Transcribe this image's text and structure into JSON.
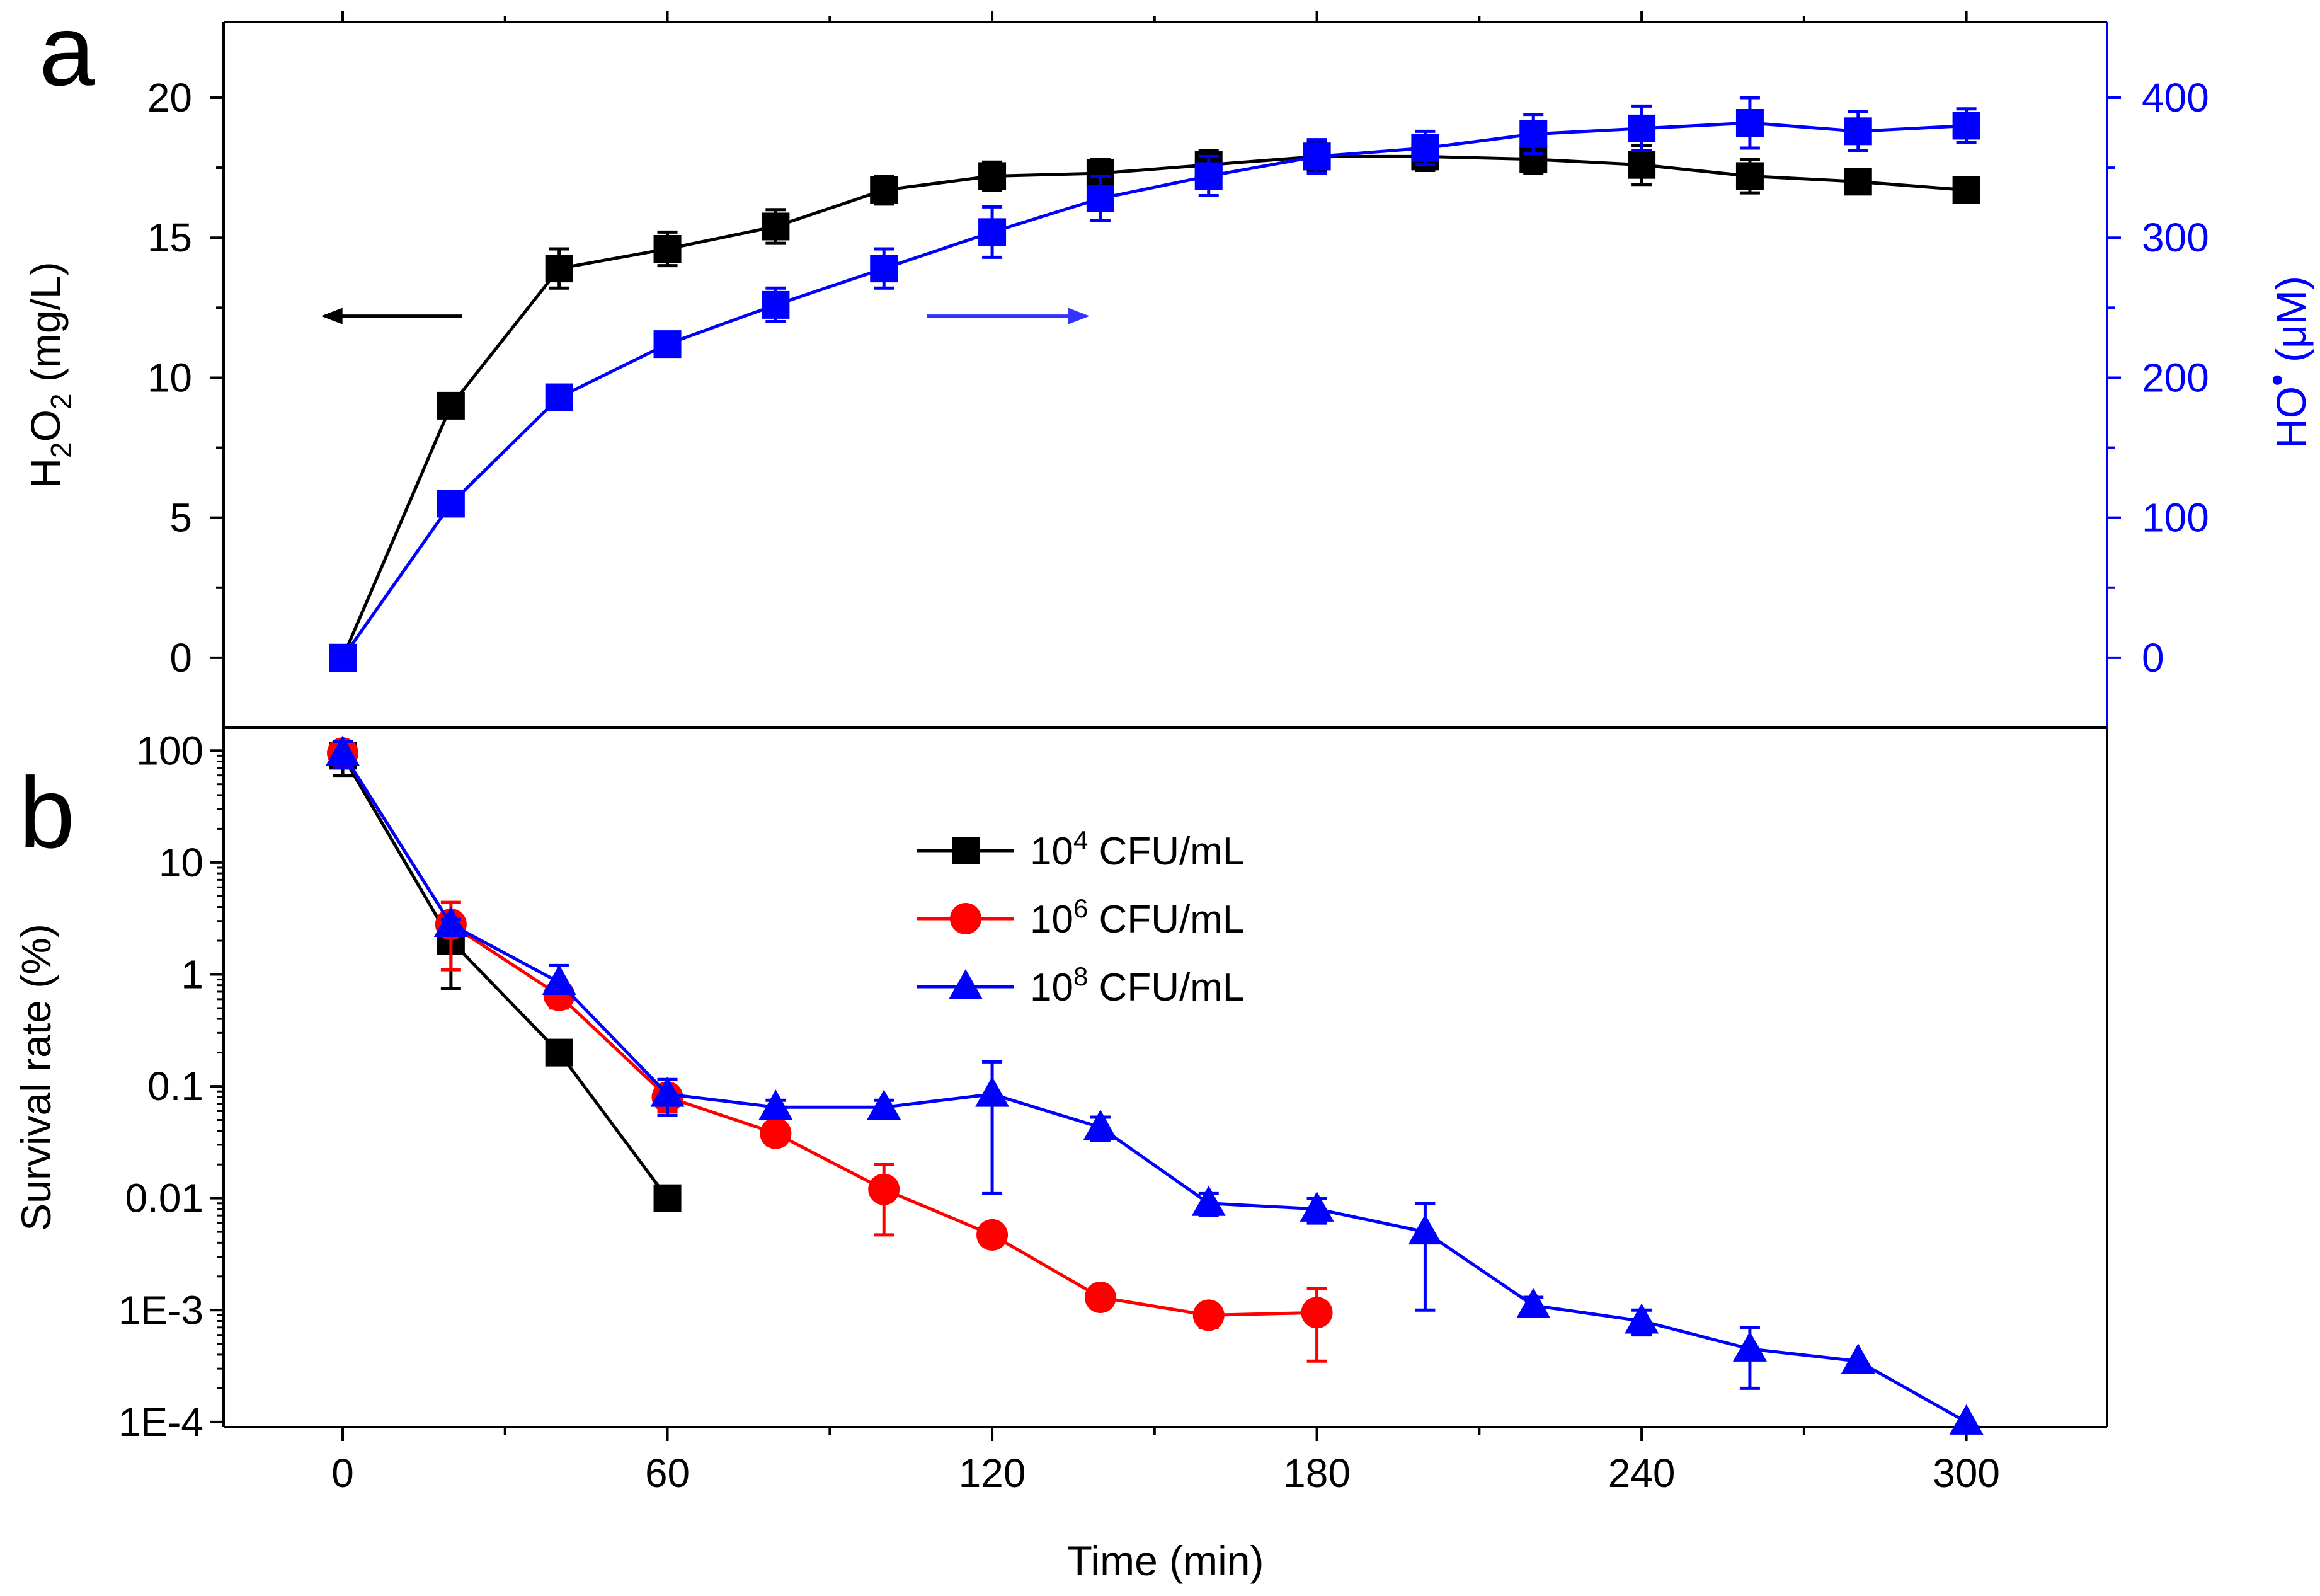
{
  "chart_data": [
    {
      "panel": "a",
      "type": "line",
      "xlabel": "Time (min)",
      "xlim": [
        -22,
        326
      ],
      "ylabel_left": "H2O2 (mg/L)",
      "ylabel_left_parts": {
        "base1": "H",
        "sub1": "2",
        "base2": "O",
        "sub2": "2",
        "unit": " (mg/L)"
      },
      "ylim_left": [
        -2.5,
        22.7
      ],
      "ylabel_right": "HO• (μM)",
      "ylabel_right_parts": {
        "base": "HO",
        "sup": "•",
        "unit": " (μM)"
      },
      "ylim_right": [
        -50,
        454
      ],
      "left_ticks": [
        "0",
        "5",
        "10",
        "15",
        "20"
      ],
      "right_ticks": [
        "0",
        "100",
        "200",
        "300",
        "400"
      ],
      "arrows": [
        {
          "points_to": "left axis",
          "color": "#000000",
          "x_from": 22,
          "x_to": -4,
          "y": 12.2
        },
        {
          "points_to": "right axis",
          "color": "#3333ff",
          "x_from": 108,
          "x_to": 138,
          "y": 12.2
        }
      ],
      "series": [
        {
          "name": "H2O2",
          "axis": "left",
          "color": "#000000",
          "marker": "square",
          "x": [
            0,
            20,
            40,
            60,
            80,
            100,
            120,
            140,
            160,
            180,
            200,
            220,
            240,
            260,
            280,
            300
          ],
          "y": [
            0,
            9.0,
            13.9,
            14.6,
            15.4,
            16.7,
            17.2,
            17.3,
            17.6,
            17.9,
            17.9,
            17.8,
            17.6,
            17.2,
            17.0,
            16.7
          ],
          "err": [
            0,
            0.3,
            0.7,
            0.6,
            0.6,
            0.5,
            0.5,
            0.5,
            0.5,
            0.5,
            0.5,
            0.5,
            0.7,
            0.6,
            0.4,
            0.3
          ]
        },
        {
          "name": "HO•",
          "axis": "right",
          "color": "#0000ff",
          "marker": "square",
          "x": [
            0,
            20,
            40,
            60,
            80,
            100,
            120,
            140,
            160,
            180,
            200,
            220,
            240,
            260,
            280,
            300
          ],
          "y": [
            0,
            110,
            186,
            224,
            252,
            278,
            304,
            328,
            344,
            358,
            364,
            374,
            378,
            382,
            376,
            380
          ],
          "err": [
            0,
            6,
            6,
            6,
            12,
            14,
            18,
            16,
            14,
            12,
            12,
            14,
            16,
            18,
            14,
            12
          ]
        }
      ]
    },
    {
      "panel": "b",
      "type": "line",
      "yscale": "log",
      "xlabel": "Time (min)",
      "xlim": [
        -22,
        326
      ],
      "x_ticks": [
        "0",
        "60",
        "120",
        "180",
        "240",
        "300"
      ],
      "ylabel": "Survival rate (%)",
      "ylim": [
        9e-05,
        160
      ],
      "y_ticks": [
        "1E-4",
        "1E-3",
        "0.01",
        "0.1",
        "1",
        "10",
        "100"
      ],
      "legend_position": "upper-center",
      "series": [
        {
          "name": "10^4 CFU/mL",
          "label_parts": {
            "base": "10",
            "sup": "4",
            "rest": " CFU/mL"
          },
          "color": "#000000",
          "marker": "square",
          "x": [
            0,
            20,
            40,
            60
          ],
          "y": [
            90,
            2.0,
            0.2,
            0.01
          ],
          "err_low": [
            30,
            1.25,
            0,
            0
          ],
          "err_high": [
            30,
            0,
            0,
            0
          ]
        },
        {
          "name": "10^6 CFU/mL",
          "label_parts": {
            "base": "10",
            "sup": "6",
            "rest": " CFU/mL"
          },
          "color": "#ff0000",
          "marker": "circle",
          "x": [
            0,
            20,
            40,
            60,
            80,
            100,
            120,
            140,
            160,
            180
          ],
          "y": [
            95,
            2.8,
            0.65,
            0.08,
            0.038,
            0.012,
            0.0047,
            0.0013,
            0.0009,
            0.00095
          ],
          "err_low": [
            25,
            1.7,
            0.15,
            0.02,
            0.008,
            0.0073,
            0.0005,
            0.0002,
            0.0002,
            0.0006
          ],
          "err_high": [
            25,
            1.6,
            0.15,
            0.02,
            0.008,
            0.008,
            0.0005,
            0.0002,
            0.0002,
            0.0006
          ]
        },
        {
          "name": "10^8 CFU/mL",
          "label_parts": {
            "base": "10",
            "sup": "8",
            "rest": " CFU/mL"
          },
          "color": "#0000ff",
          "marker": "triangle",
          "x": [
            0,
            20,
            40,
            60,
            80,
            100,
            120,
            140,
            160,
            180,
            200,
            220,
            240,
            260,
            280,
            300
          ],
          "y": [
            95,
            2.8,
            0.85,
            0.085,
            0.065,
            0.065,
            0.085,
            0.043,
            0.009,
            0.008,
            0.005,
            0.0011,
            0.0008,
            0.00045,
            0.00035,
            0.0001
          ],
          "err_low": [
            25,
            0.3,
            0.1,
            0.03,
            0.01,
            0.01,
            0.074,
            0.01,
            0.002,
            0.002,
            0.004,
            0.0002,
            0.0002,
            0.00025,
            0,
            0
          ],
          "err_high": [
            25,
            0.3,
            0.35,
            0.03,
            0.01,
            0.01,
            0.08,
            0.01,
            0.002,
            0.002,
            0.004,
            0.0002,
            0.0002,
            0.00025,
            0,
            0
          ]
        }
      ]
    }
  ]
}
